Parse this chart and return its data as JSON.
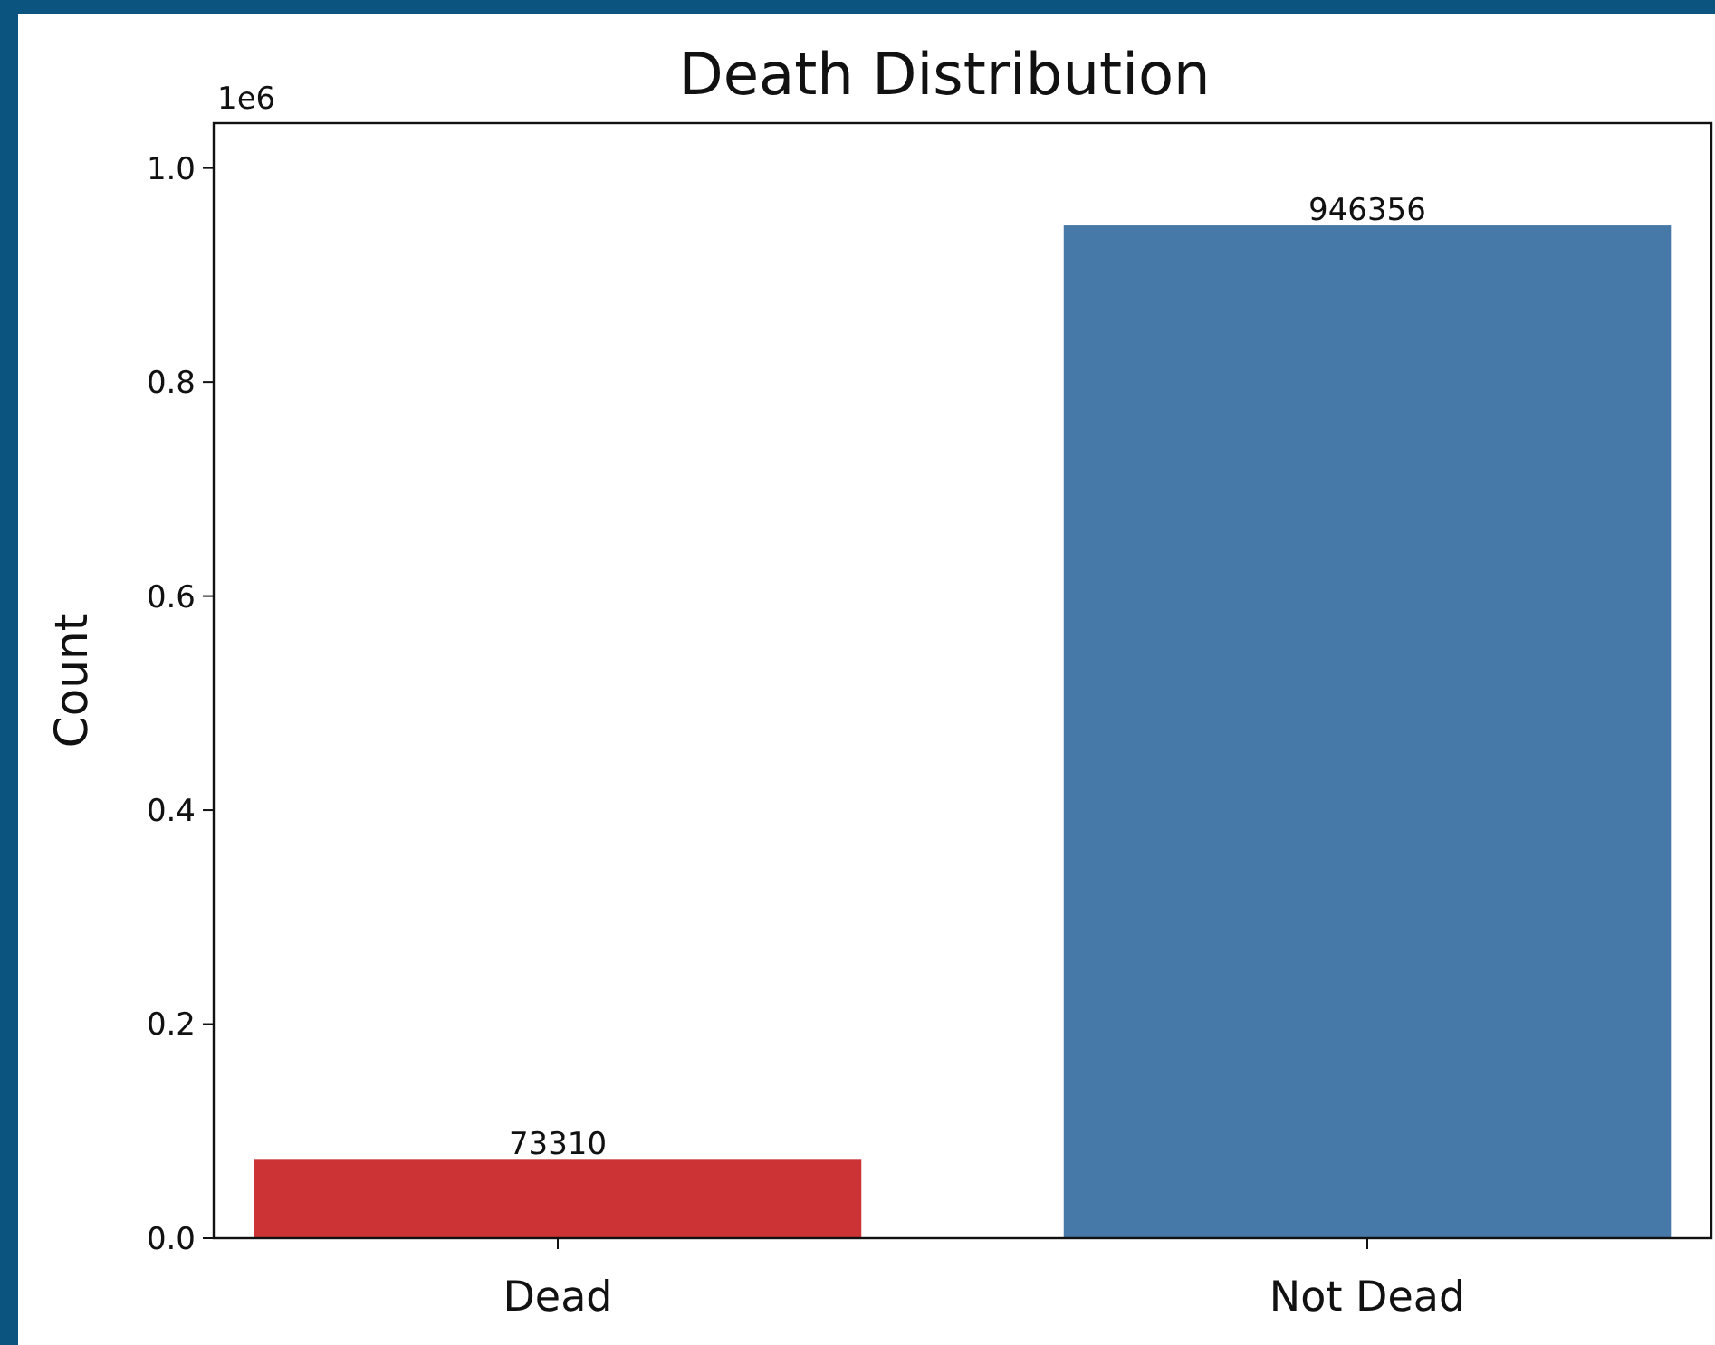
{
  "chart_data": {
    "type": "bar",
    "title": "Death Distribution",
    "ylabel": "Count",
    "categories": [
      "Dead",
      "Not Dead"
    ],
    "values": [
      0.07331,
      0.946356
    ],
    "colors": [
      "#cb3335",
      "#4779a8"
    ],
    "ylim": [
      0,
      1.042
    ],
    "yticks": [
      {
        "value": 0,
        "label": "0.0"
      },
      0.2,
      0.4,
      0.6,
      0.8,
      {
        "value": 1,
        "label": "1.0"
      }
    ],
    "annotations": [
      "1e6",
      {
        "text": "73310",
        "x": "Dead",
        "y": 0.07331
      },
      {
        "text": "946356",
        "x": "Not Dead",
        "y": 0.946356
      }
    ],
    "grid": false
  }
}
